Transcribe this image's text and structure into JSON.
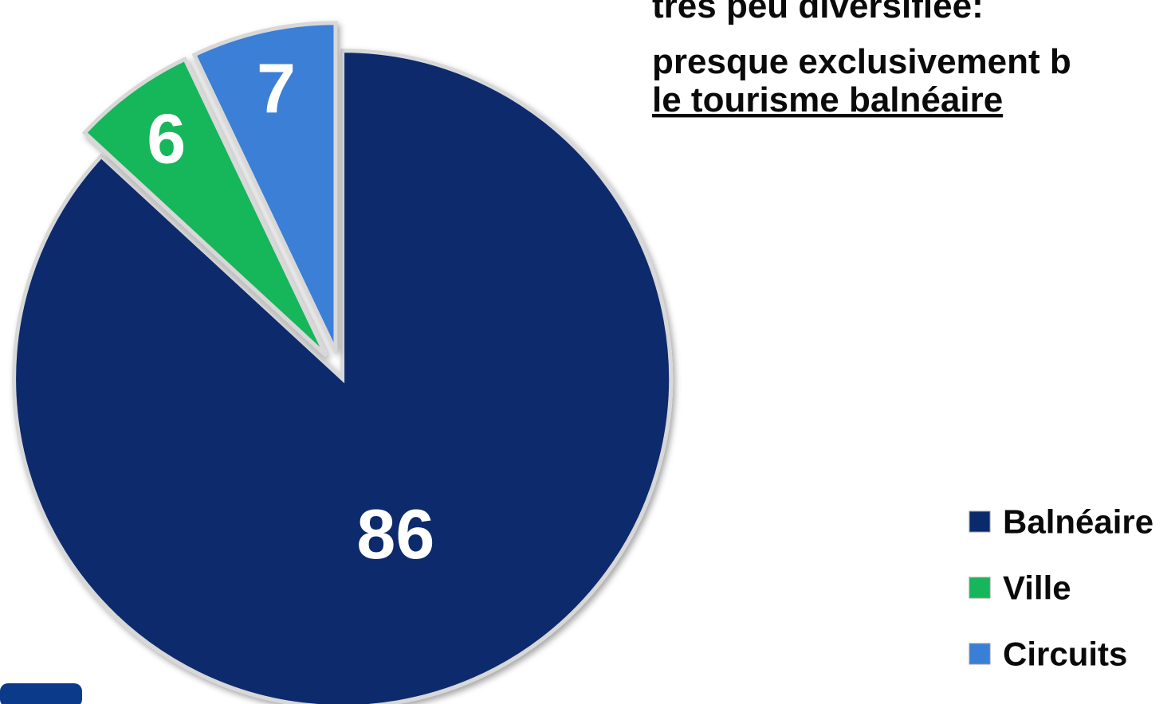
{
  "chart_data": {
    "type": "pie",
    "annotation_lines": [
      "très peu diversifiée:",
      "presque exclusivement b",
      "le tourisme balnéaire"
    ],
    "categories": [
      "Balnéaire",
      "Ville",
      "Circuits"
    ],
    "values": [
      86,
      6,
      7
    ],
    "colors": [
      "#0b2a6c",
      "#17b65a",
      "#3a7fd6"
    ],
    "legend": "right"
  }
}
